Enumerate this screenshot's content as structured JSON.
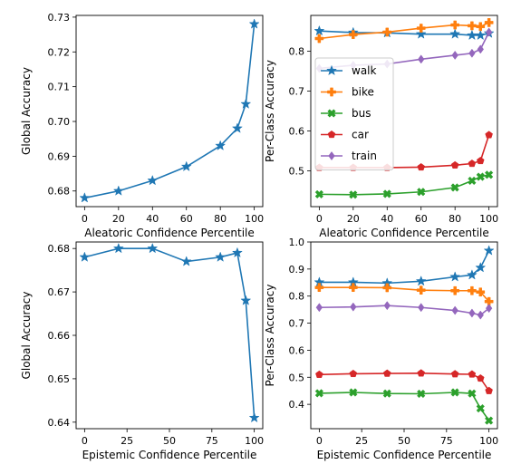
{
  "chart_data": [
    {
      "type": "line",
      "xlabel": "Aleatoric Confidence Percentile",
      "ylabel": "Global Accuracy",
      "xlim": [
        -5,
        105
      ],
      "ylim": [
        0.6755,
        0.7305
      ],
      "xticks": [
        0,
        20,
        40,
        60,
        80,
        100
      ],
      "yticks": [
        0.68,
        0.69,
        0.7,
        0.71,
        0.72,
        0.73
      ],
      "ytick_labels": [
        "0.68",
        "0.69",
        "0.70",
        "0.71",
        "0.72",
        "0.73"
      ],
      "x": [
        0,
        20,
        40,
        60,
        80,
        90,
        95,
        100
      ],
      "series": [
        {
          "values": [
            0.678,
            0.68,
            0.683,
            0.687,
            0.693,
            0.698,
            0.705,
            0.728
          ],
          "color": "#1f77b4",
          "marker": "star"
        }
      ]
    },
    {
      "type": "line",
      "xlabel": "Aleatoric Confidence Percentile",
      "ylabel": "Per-Class Accuracy",
      "xlim": [
        -5,
        105
      ],
      "ylim": [
        0.41,
        0.89
      ],
      "xticks": [
        0,
        20,
        40,
        60,
        80,
        100
      ],
      "yticks": [
        0.5,
        0.6,
        0.7,
        0.8
      ],
      "ytick_labels": [
        "0.5",
        "0.6",
        "0.7",
        "0.8"
      ],
      "x": [
        0,
        20,
        40,
        60,
        80,
        90,
        95,
        100
      ],
      "legend": "upper-left",
      "series": [
        {
          "name": "walk",
          "values": [
            0.851,
            0.847,
            0.846,
            0.843,
            0.843,
            0.84,
            0.84,
            0.845
          ],
          "color": "#1f77b4",
          "marker": "star"
        },
        {
          "name": "bike",
          "values": [
            0.832,
            0.842,
            0.848,
            0.858,
            0.866,
            0.864,
            0.862,
            0.872
          ],
          "color": "#ff7f0e",
          "marker": "plus"
        },
        {
          "name": "bus",
          "values": [
            0.441,
            0.44,
            0.442,
            0.447,
            0.458,
            0.475,
            0.485,
            0.49
          ],
          "color": "#2ca02c",
          "marker": "x"
        },
        {
          "name": "car",
          "values": [
            0.508,
            0.508,
            0.508,
            0.509,
            0.514,
            0.518,
            0.525,
            0.59
          ],
          "color": "#d62728",
          "marker": "pentagon"
        },
        {
          "name": "train",
          "values": [
            0.757,
            0.765,
            0.768,
            0.78,
            0.79,
            0.795,
            0.805,
            0.848
          ],
          "color": "#9467bd",
          "marker": "diamond"
        }
      ]
    },
    {
      "type": "line",
      "xlabel": "Epistemic Confidence Percentile",
      "ylabel": "Global Accuracy",
      "xlim": [
        -5,
        105
      ],
      "ylim": [
        0.6385,
        0.6815
      ],
      "xticks": [
        0,
        25,
        50,
        75,
        100
      ],
      "yticks": [
        0.64,
        0.65,
        0.66,
        0.67,
        0.68
      ],
      "ytick_labels": [
        "0.64",
        "0.65",
        "0.66",
        "0.67",
        "0.68"
      ],
      "x": [
        0,
        20,
        40,
        60,
        80,
        90,
        95,
        100
      ],
      "series": [
        {
          "values": [
            0.678,
            0.68,
            0.68,
            0.677,
            0.678,
            0.679,
            0.668,
            0.641
          ],
          "color": "#1f77b4",
          "marker": "star"
        }
      ]
    },
    {
      "type": "line",
      "xlabel": "Epistemic Confidence Percentile",
      "ylabel": "Per-Class Accuracy",
      "xlim": [
        -5,
        105
      ],
      "ylim": [
        0.31,
        1.0
      ],
      "xticks": [
        0,
        25,
        50,
        75,
        100
      ],
      "yticks": [
        0.4,
        0.5,
        0.6,
        0.7,
        0.8,
        0.9,
        1.0
      ],
      "ytick_labels": [
        "0.4",
        "0.5",
        "0.6",
        "0.7",
        "0.8",
        "0.9",
        "1.0"
      ],
      "x": [
        0,
        20,
        40,
        60,
        80,
        90,
        95,
        100
      ],
      "series": [
        {
          "name": "walk",
          "values": [
            0.851,
            0.851,
            0.848,
            0.855,
            0.871,
            0.878,
            0.905,
            0.968
          ],
          "color": "#1f77b4",
          "marker": "star"
        },
        {
          "name": "bike",
          "values": [
            0.832,
            0.832,
            0.831,
            0.822,
            0.82,
            0.82,
            0.815,
            0.78
          ],
          "color": "#ff7f0e",
          "marker": "plus"
        },
        {
          "name": "bus",
          "values": [
            0.441,
            0.444,
            0.44,
            0.439,
            0.444,
            0.44,
            0.385,
            0.34
          ],
          "color": "#2ca02c",
          "marker": "x"
        },
        {
          "name": "car",
          "values": [
            0.51,
            0.513,
            0.514,
            0.515,
            0.512,
            0.511,
            0.496,
            0.45
          ],
          "color": "#d62728",
          "marker": "pentagon"
        },
        {
          "name": "train",
          "values": [
            0.758,
            0.76,
            0.765,
            0.758,
            0.747,
            0.737,
            0.73,
            0.755
          ],
          "color": "#9467bd",
          "marker": "diamond"
        }
      ]
    }
  ]
}
